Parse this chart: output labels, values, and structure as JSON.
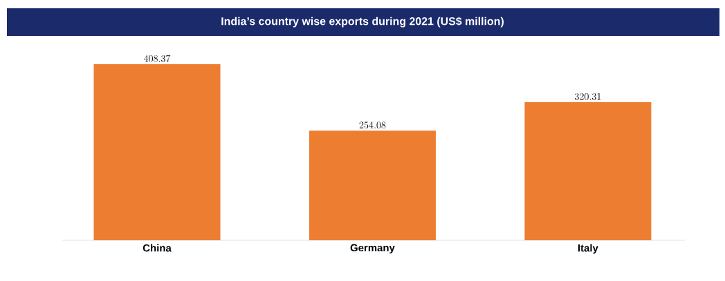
{
  "chart_data": {
    "type": "bar",
    "title": "India’s country wise exports during 2021 (US$ million)",
    "categories": [
      "China",
      "Germany",
      "Italy"
    ],
    "values": [
      408.37,
      254.08,
      320.31
    ],
    "color": "#ed7d31",
    "data_labels": true
  }
}
